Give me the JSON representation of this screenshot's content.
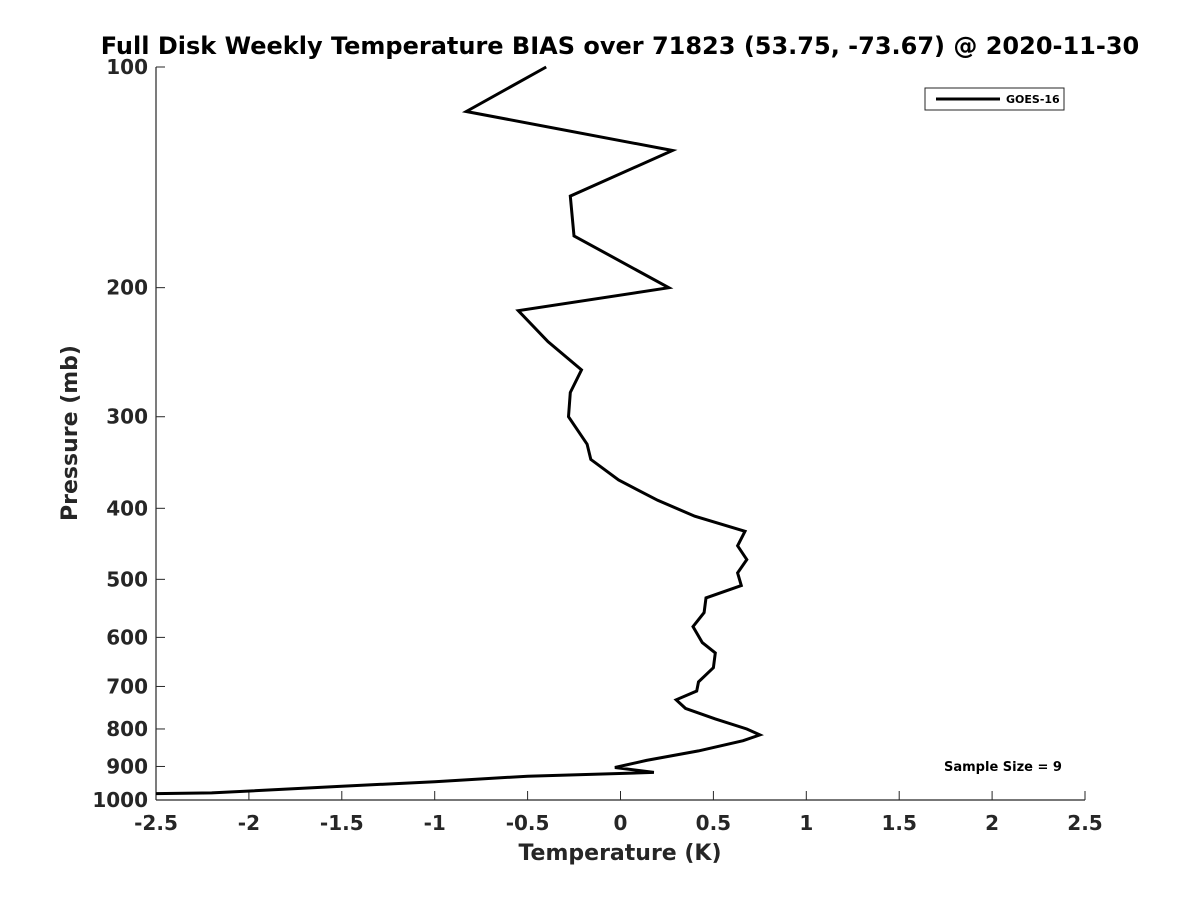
{
  "chart_data": {
    "type": "line",
    "title": "Full Disk Weekly Temperature BIAS over 71823 (53.75, -73.67) @ 2020-11-30",
    "xlabel": "Temperature (K)",
    "ylabel": "Pressure (mb)",
    "xlim": [
      -2.5,
      2.5
    ],
    "ylim": [
      100,
      1000
    ],
    "y_scale": "log",
    "y_reversed": true,
    "x_ticks": [
      "-2.5",
      "-2",
      "-1.5",
      "-1",
      "-0.5",
      "0",
      "0.5",
      "1",
      "1.5",
      "2",
      "2.5"
    ],
    "y_ticks": [
      "100",
      "200",
      "300",
      "400",
      "500",
      "600",
      "700",
      "800",
      "900",
      "1000"
    ],
    "grid": false,
    "legend_position": "top-right",
    "annotation": "Sample Size = 9",
    "series": [
      {
        "name": "GOES-16",
        "color": "#000000",
        "points": [
          [
            -0.4,
            100
          ],
          [
            -0.83,
            115
          ],
          [
            0.28,
            130
          ],
          [
            -0.27,
            150
          ],
          [
            -0.25,
            170
          ],
          [
            0.26,
            200
          ],
          [
            -0.55,
            215
          ],
          [
            -0.39,
            237
          ],
          [
            -0.21,
            259
          ],
          [
            -0.27,
            278
          ],
          [
            -0.28,
            300
          ],
          [
            -0.18,
            327
          ],
          [
            -0.16,
            343
          ],
          [
            -0.01,
            366
          ],
          [
            0.2,
            390
          ],
          [
            0.4,
            410
          ],
          [
            0.67,
            430
          ],
          [
            0.63,
            450
          ],
          [
            0.68,
            470
          ],
          [
            0.63,
            490
          ],
          [
            0.65,
            510
          ],
          [
            0.46,
            530
          ],
          [
            0.45,
            555
          ],
          [
            0.39,
            580
          ],
          [
            0.44,
            610
          ],
          [
            0.51,
            630
          ],
          [
            0.5,
            660
          ],
          [
            0.42,
            690
          ],
          [
            0.41,
            710
          ],
          [
            0.3,
            730
          ],
          [
            0.35,
            750
          ],
          [
            0.51,
            775
          ],
          [
            0.68,
            800
          ],
          [
            0.75,
            815
          ],
          [
            0.66,
            830
          ],
          [
            0.42,
            857
          ],
          [
            0.14,
            883
          ],
          [
            -0.03,
            903
          ],
          [
            0.18,
            917
          ],
          [
            -0.5,
            928
          ],
          [
            -1.0,
            944
          ],
          [
            -1.5,
            958
          ],
          [
            -2.2,
            978
          ],
          [
            -2.5,
            980
          ]
        ]
      }
    ]
  }
}
